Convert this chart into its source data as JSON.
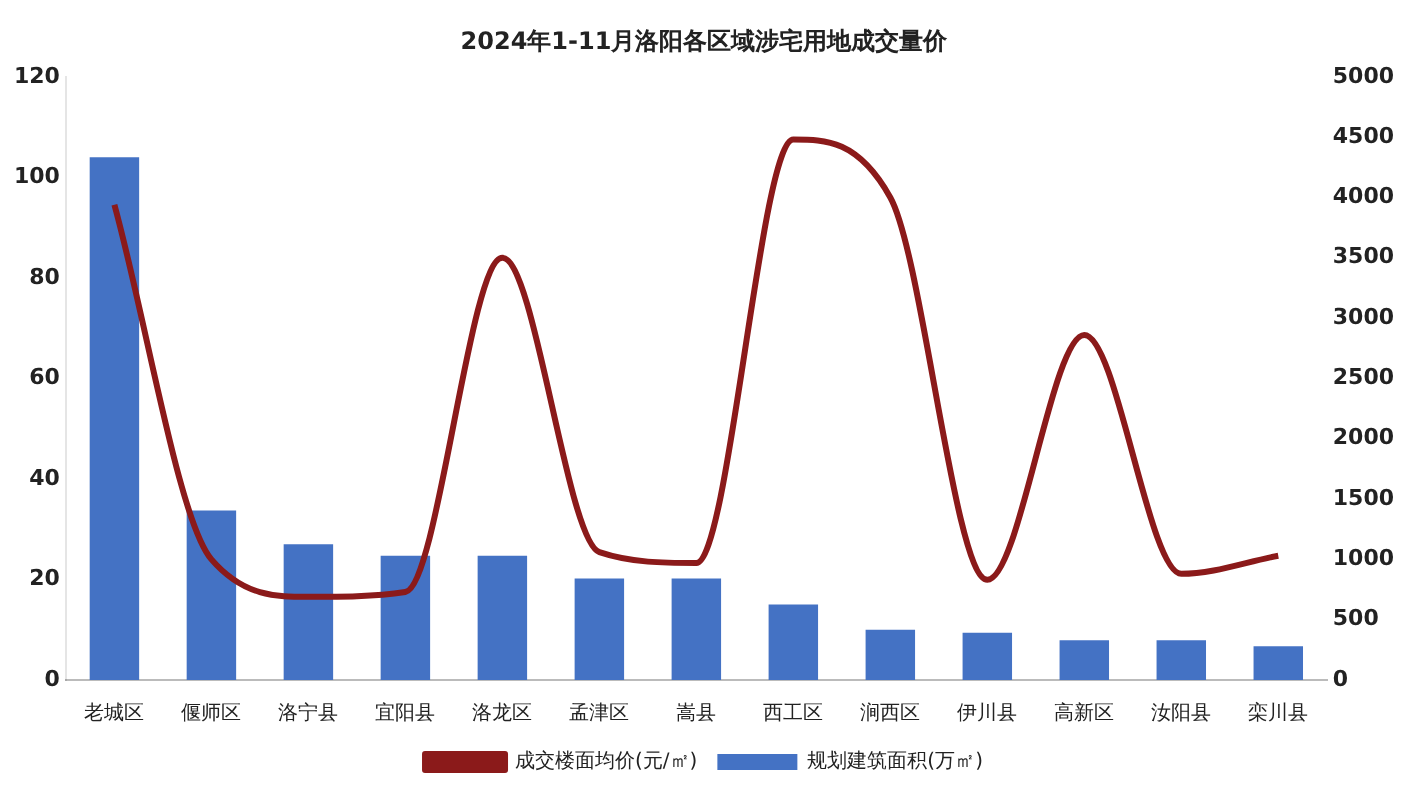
{
  "chart_data": {
    "type": "bar",
    "title": "2024年1-11月洛阳各区域涉宅用地成交量价",
    "categories": [
      "老城区",
      "偃师区",
      "洛宁县",
      "宜阳县",
      "洛龙区",
      "孟津区",
      "嵩县",
      "西工区",
      "涧西区",
      "伊川县",
      "高新区",
      "汝阳县",
      "栾川县"
    ],
    "series": [
      {
        "name": "规划建筑面积(万㎡)",
        "color": "#4472c4",
        "values": [
          104,
          33.7,
          27,
          24.7,
          24.7,
          20.2,
          20.2,
          15,
          10,
          9.4,
          7.9,
          7.9,
          6.7
        ]
      },
      {
        "name": "成交楼面均价(元/㎡)",
        "color": "#8b1a1a",
        "type": "line",
        "axis": "y2",
        "values": [
          3940,
          1000,
          690,
          730,
          3500,
          1060,
          970,
          4480,
          4000,
          830,
          2860,
          880,
          1030
        ]
      }
    ],
    "ylim": [
      0,
      120
    ],
    "yticks": [
      0,
      20,
      40,
      60,
      80,
      100,
      120
    ],
    "y2lim": [
      0,
      5000
    ],
    "y2ticks": [
      0,
      500,
      1000,
      1500,
      2000,
      2500,
      3000,
      3500,
      4000,
      4500,
      5000
    ],
    "grid": false,
    "legend": "bottom",
    "marker": "none",
    "line_style": "solid"
  }
}
